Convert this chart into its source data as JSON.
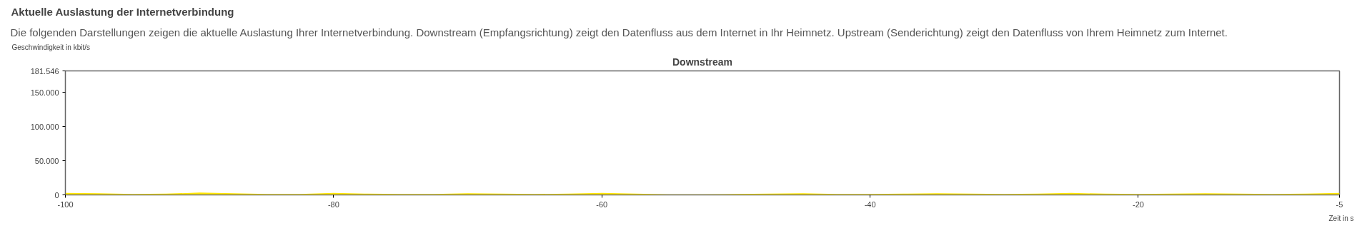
{
  "chart_data": {
    "type": "area",
    "title": "Aktuelle Auslastung der Internetverbindung",
    "subtitle": "Die folgenden Darstellungen zeigen die aktuelle Auslastung Ihrer Internetverbindung. Downstream (Empfangsrichtung) zeigt den Datenfluss aus dem Internet in Ihr Heimnetz. Upstream (Senderichtung) zeigt den Datenfluss von Ihrem Heimnetz zum Internet.",
    "annotations": [
      "Downstream"
    ],
    "xlabel": "Zeit in s",
    "ylabel": "Geschwindigkeit in kbit/s",
    "x": [
      -100,
      -97.5,
      -95,
      -92.5,
      -90,
      -87.5,
      -85,
      -82.5,
      -80,
      -77.5,
      -75,
      -72.5,
      -70,
      -67.5,
      -65,
      -62.5,
      -60,
      -57.5,
      -55,
      -52.5,
      -50,
      -47.5,
      -45,
      -42.5,
      -40,
      -37.5,
      -35,
      -32.5,
      -30,
      -27.5,
      -25,
      -22.5,
      -20,
      -17.5,
      -15,
      -12.5,
      -10,
      -7.5,
      -5
    ],
    "series": [
      {
        "color": "#ffe600",
        "values": [
          2000,
          1500,
          500,
          1000,
          2500,
          1500,
          500,
          500,
          2000,
          1000,
          500,
          500,
          1500,
          1000,
          500,
          1000,
          2000,
          1000,
          0,
          0,
          500,
          1000,
          1500,
          500,
          500,
          1000,
          1500,
          1000,
          500,
          1000,
          2000,
          1000,
          500,
          1000,
          1500,
          1000,
          500,
          1000,
          2000
        ]
      }
    ],
    "xlim": [
      -100,
      -5
    ],
    "xticks": [
      -100,
      -80,
      -60,
      -40,
      -20,
      -5
    ],
    "ylim": [
      0,
      181546
    ],
    "yticks": [
      0,
      {
        "value": 50000,
        "label": "50.000"
      },
      {
        "value": 100000,
        "label": "100.000"
      },
      {
        "value": 150000,
        "label": "150.000"
      },
      {
        "value": 181546,
        "label": "181.546"
      }
    ],
    "grid": false
  }
}
